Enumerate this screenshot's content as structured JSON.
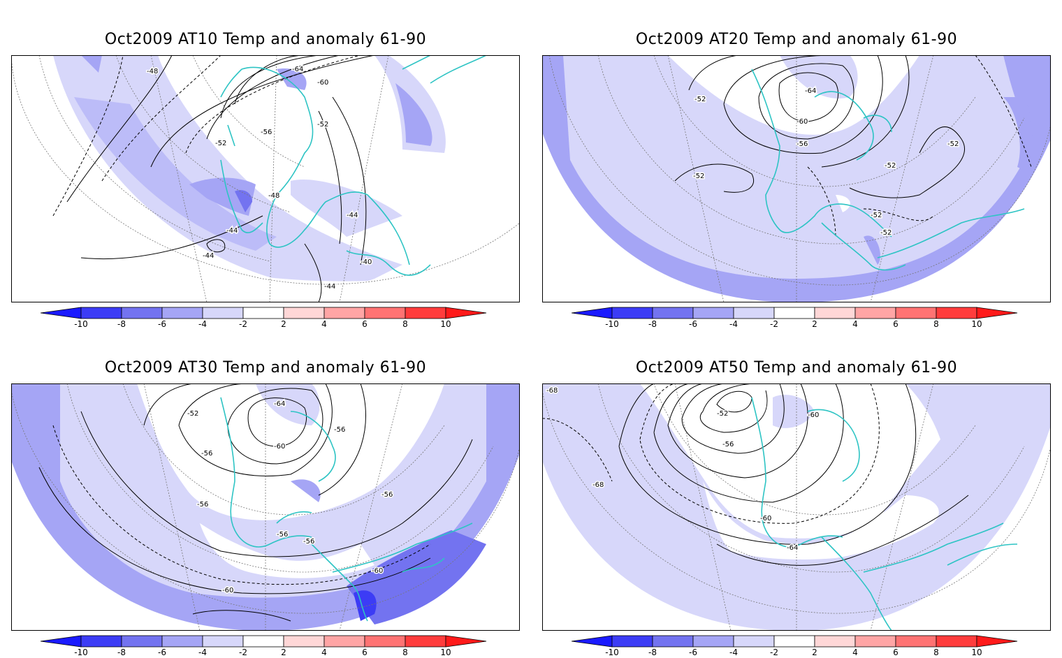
{
  "panels": [
    {
      "title": "Oct2009 AT10 Temp and anomaly 61-90",
      "contour_labels": [
        "-64",
        "-60",
        "-56",
        "-52",
        "-52",
        "-48",
        "-48",
        "-44",
        "-44",
        "-44",
        "-44",
        "-40"
      ]
    },
    {
      "title": "Oct2009 AT20 Temp and anomaly 61-90",
      "contour_labels": [
        "-64",
        "-60",
        "-56",
        "-52",
        "-52",
        "-52",
        "-52",
        "-52",
        "-52"
      ]
    },
    {
      "title": "Oct2009 AT30 Temp and anomaly 61-90",
      "contour_labels": [
        "-64",
        "-60",
        "-56",
        "-56",
        "-56",
        "-56",
        "-56",
        "-52",
        "-60",
        "-60"
      ]
    },
    {
      "title": "Oct2009 AT50 Temp and anomaly 61-90",
      "contour_labels": [
        "-68",
        "-68",
        "-60",
        "-56",
        "-52",
        "-60",
        "-64"
      ]
    }
  ],
  "colorbar": {
    "tick_labels": [
      "-10",
      "-8",
      "-6",
      "-4",
      "-2",
      "2",
      "4",
      "6",
      "8",
      "10"
    ],
    "colors": [
      "#1a1aff",
      "#3c3cf5",
      "#7373f0",
      "#a5a5f5",
      "#d7d7fa",
      "#ffffff",
      "#ffd7d7",
      "#ffa5a5",
      "#ff7373",
      "#ff3c3c",
      "#ff1a1a"
    ]
  },
  "map_colors": {
    "coast": "#2ec4c4",
    "contour": "#000000"
  }
}
